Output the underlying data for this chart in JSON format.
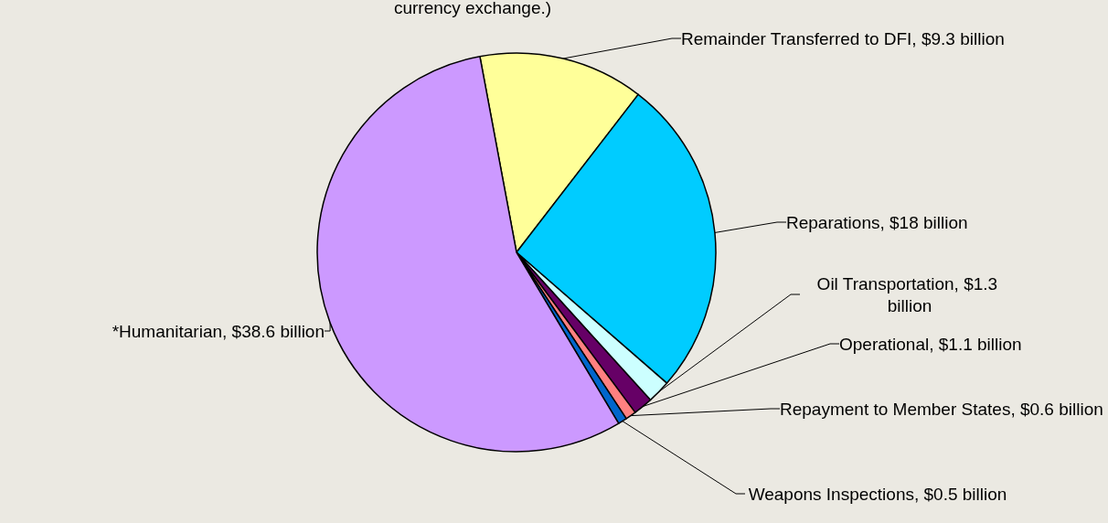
{
  "chart_data": {
    "type": "pie",
    "annotations": [
      "currency exchange.)"
    ],
    "categories": [
      "Remainder Transferred to DFI",
      "Reparations",
      "Oil Transportation",
      "Operational",
      "Repayment to Member States",
      "Weapons Inspections",
      "*Humanitarian"
    ],
    "values": [
      9.3,
      18,
      1.3,
      1.1,
      0.6,
      0.5,
      38.6
    ],
    "value_labels": [
      "$9.3 billion",
      "$18 billion",
      "$1.3 billion",
      "$1.1 billion",
      "$0.6 billion",
      "$0.5 billion",
      "$38.6 billion"
    ],
    "colors": [
      "#ffff99",
      "#00ccff",
      "#ccffff",
      "#660066",
      "#ff8080",
      "#0066cc",
      "#cc99ff"
    ],
    "legend": false
  }
}
